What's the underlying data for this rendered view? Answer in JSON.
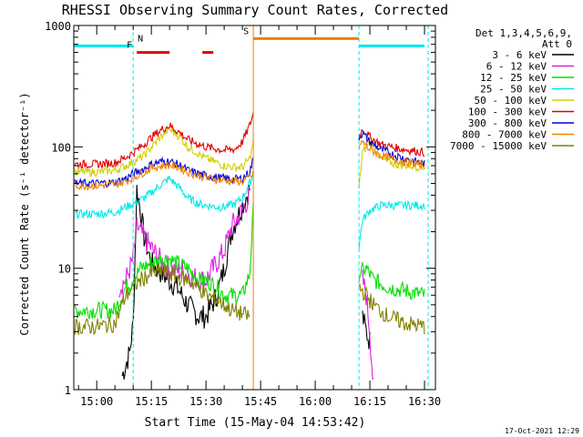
{
  "chart_data": {
    "type": "line",
    "title": "RHESSI Observing Summary Count Rates, Corrected",
    "xlabel": "Start Time (15-May-04 14:53:42)",
    "ylabel": "Corrected Count Rate (s⁻¹ detector⁻¹)",
    "y_scale": "log",
    "ylim": [
      1,
      1000
    ],
    "xlim": [
      "14:53:42",
      "16:33:00"
    ],
    "x_ticks": [
      "15:00",
      "15:15",
      "15:30",
      "15:45",
      "16:00",
      "16:15",
      "16:30"
    ],
    "y_ticks": [
      "1",
      "10",
      "100",
      "1000"
    ],
    "legend": {
      "position": "top-right",
      "header": [
        "Det 1,3,4,5,6,9,",
        "Att 0"
      ],
      "entries": [
        {
          "label": "3 - 6 keV",
          "color": "#000000"
        },
        {
          "label": "6 - 12 keV",
          "color": "#e020e0"
        },
        {
          "label": "12 - 25 keV",
          "color": "#00e000"
        },
        {
          "label": "25 - 50 keV",
          "color": "#00e8e8"
        },
        {
          "label": "50 - 100 keV",
          "color": "#d0d000"
        },
        {
          "label": "100 - 300 keV",
          "color": "#e00000"
        },
        {
          "label": "300 - 800 keV",
          "color": "#0000e0"
        },
        {
          "label": "800 - 7000 keV",
          "color": "#f08000"
        },
        {
          "label": "7000 - 15000 keV",
          "color": "#808000"
        }
      ]
    },
    "flags": [
      {
        "label": "N",
        "color": "#00e8e8",
        "segments": [
          [
            "14:53:42",
            "15:10"
          ],
          [
            "16:12",
            "16:30"
          ]
        ],
        "level": 680
      },
      {
        "label": "F",
        "color": "#e00000",
        "segments": [
          [
            "15:11",
            "15:20"
          ],
          [
            "15:29",
            "15:32"
          ]
        ],
        "level": 600
      },
      {
        "label": "S",
        "color": "#f08000",
        "segments": [
          [
            "15:43",
            "16:12"
          ]
        ],
        "level": 780
      }
    ],
    "night_boundaries": [
      "15:10",
      "16:12"
    ],
    "data_gaps": [
      [
        "15:43",
        "16:12"
      ]
    ],
    "series": [
      {
        "name": "3 - 6 keV",
        "color": "#000000",
        "x": [
          "15:07",
          "15:09",
          "15:10",
          "15:11",
          "15:12",
          "15:13",
          "15:15",
          "15:18",
          "15:22",
          "15:25",
          "15:28",
          "15:30",
          "15:33",
          "15:35",
          "15:37",
          "15:40",
          "15:42",
          "16:13",
          "16:14",
          "16:15"
        ],
        "y": [
          1.3,
          2.0,
          3.5,
          45,
          30,
          18,
          11,
          9,
          7,
          5,
          4,
          4,
          6,
          10,
          20,
          33,
          45,
          4,
          3,
          2.5
        ]
      },
      {
        "name": "6 - 12 keV",
        "color": "#e020e0",
        "x": [
          "15:06",
          "15:08",
          "15:10",
          "15:11",
          "15:12",
          "15:14",
          "15:17",
          "15:20",
          "15:25",
          "15:28",
          "15:30",
          "15:32",
          "15:35",
          "15:37",
          "15:40",
          "15:42",
          "16:13",
          "16:14",
          "16:15",
          "16:16"
        ],
        "y": [
          7,
          8,
          12,
          22,
          20,
          16,
          12,
          10,
          9,
          8,
          8,
          10,
          14,
          22,
          30,
          40,
          8,
          6,
          3,
          1
        ]
      },
      {
        "name": "12 - 25 keV",
        "color": "#00e000",
        "x": [
          "14:54",
          "15:00",
          "15:05",
          "15:08",
          "15:10",
          "15:12",
          "15:15",
          "15:18",
          "15:20",
          "15:22",
          "15:25",
          "15:28",
          "15:30",
          "15:33",
          "15:35",
          "15:37",
          "15:40",
          "15:42",
          "15:43",
          "16:12",
          "16:14",
          "16:16",
          "16:20",
          "16:25",
          "16:30"
        ],
        "y": [
          4.5,
          4.5,
          4.5,
          7,
          8,
          10,
          11,
          12,
          12,
          11,
          10,
          8,
          8,
          7,
          6,
          6,
          6,
          9,
          30,
          9,
          10,
          8,
          7,
          6.5,
          6
        ]
      },
      {
        "name": "25 - 50 keV",
        "color": "#00e8e8",
        "x": [
          "14:54",
          "15:00",
          "15:05",
          "15:08",
          "15:10",
          "15:13",
          "15:15",
          "15:18",
          "15:20",
          "15:23",
          "15:25",
          "15:28",
          "15:30",
          "15:33",
          "15:35",
          "15:38",
          "15:40",
          "15:42",
          "15:43",
          "16:12",
          "16:13",
          "16:15",
          "16:18",
          "16:22",
          "16:26",
          "16:30"
        ],
        "y": [
          28,
          28,
          29,
          32,
          34,
          38,
          42,
          50,
          55,
          45,
          38,
          34,
          33,
          32,
          32,
          34,
          38,
          50,
          60,
          15,
          25,
          30,
          33,
          33,
          33,
          33
        ]
      },
      {
        "name": "50 - 100 keV",
        "color": "#d0d000",
        "x": [
          "14:54",
          "15:00",
          "15:05",
          "15:08",
          "15:10",
          "15:13",
          "15:15",
          "15:18",
          "15:20",
          "15:23",
          "15:25",
          "15:28",
          "15:30",
          "15:33",
          "15:35",
          "15:38",
          "15:40",
          "15:42",
          "15:43",
          "16:12",
          "16:13",
          "16:15",
          "16:18",
          "16:22",
          "16:26",
          "16:30"
        ],
        "y": [
          62,
          62,
          64,
          70,
          75,
          85,
          100,
          125,
          140,
          120,
          100,
          88,
          80,
          74,
          70,
          68,
          68,
          80,
          110,
          45,
          90,
          110,
          80,
          72,
          70,
          68
        ]
      },
      {
        "name": "100 - 300 keV",
        "color": "#e00000",
        "x": [
          "14:54",
          "15:00",
          "15:05",
          "15:08",
          "15:10",
          "15:13",
          "15:15",
          "15:18",
          "15:20",
          "15:23",
          "15:25",
          "15:28",
          "15:30",
          "15:33",
          "15:35",
          "15:38",
          "15:40",
          "15:42",
          "15:43",
          "16:12",
          "16:13",
          "16:15",
          "16:18",
          "16:22",
          "16:26",
          "16:30"
        ],
        "y": [
          72,
          72,
          74,
          82,
          90,
          105,
          120,
          140,
          150,
          130,
          115,
          105,
          100,
          96,
          94,
          96,
          110,
          150,
          190,
          120,
          140,
          120,
          105,
          98,
          94,
          90
        ]
      },
      {
        "name": "300 - 800 keV",
        "color": "#0000e0",
        "x": [
          "14:54",
          "15:00",
          "15:05",
          "15:08",
          "15:10",
          "15:13",
          "15:15",
          "15:18",
          "15:20",
          "15:23",
          "15:25",
          "15:28",
          "15:30",
          "15:33",
          "15:35",
          "15:38",
          "15:40",
          "15:42",
          "15:43",
          "16:12",
          "16:13",
          "16:15",
          "16:18",
          "16:22",
          "16:26",
          "16:30"
        ],
        "y": [
          50,
          50,
          51,
          55,
          60,
          66,
          72,
          76,
          76,
          70,
          64,
          60,
          58,
          56,
          55,
          54,
          55,
          62,
          80,
          120,
          130,
          110,
          95,
          85,
          78,
          72
        ]
      },
      {
        "name": "800 - 7000 keV",
        "color": "#f08000",
        "x": [
          "14:54",
          "15:00",
          "15:05",
          "15:08",
          "15:10",
          "15:13",
          "15:15",
          "15:18",
          "15:20",
          "15:23",
          "15:25",
          "15:28",
          "15:30",
          "15:33",
          "15:35",
          "15:38",
          "15:40",
          "15:42",
          "15:43",
          "16:12",
          "16:13",
          "16:15",
          "16:18",
          "16:22",
          "16:26",
          "16:30"
        ],
        "y": [
          48,
          48,
          49,
          52,
          56,
          62,
          67,
          70,
          71,
          67,
          62,
          58,
          56,
          54,
          53,
          52,
          52,
          56,
          60,
          100,
          110,
          95,
          85,
          78,
          74,
          70
        ]
      },
      {
        "name": "7000 - 15000 keV",
        "color": "#808000",
        "x": [
          "14:54",
          "15:00",
          "15:05",
          "15:08",
          "15:10",
          "15:12",
          "15:15",
          "15:18",
          "15:20",
          "15:22",
          "15:25",
          "15:28",
          "15:30",
          "15:33",
          "15:35",
          "15:37",
          "15:40",
          "15:42",
          "16:12",
          "16:14",
          "16:16",
          "16:20",
          "16:25",
          "16:30"
        ],
        "y": [
          3.3,
          3.3,
          3.5,
          6,
          7,
          8,
          9,
          9.5,
          9,
          8.5,
          8,
          7,
          6,
          5.5,
          5,
          4.5,
          4.2,
          4,
          7,
          6,
          5,
          4,
          3.5,
          3.3
        ]
      }
    ]
  },
  "footer": {
    "date_stamp": "17-Oct-2021 12:29"
  }
}
